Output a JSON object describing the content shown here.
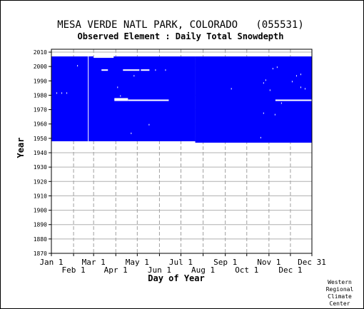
{
  "chart_data": {
    "type": "heatmap",
    "title": "MESA VERDE NATL PARK, COLORADO   (055531)",
    "subtitle": "Observed Element : Daily Total Snowdepth",
    "xlabel": "Day of Year",
    "ylabel": "Year",
    "ylim": [
      1870,
      2012
    ],
    "y_ticks": [
      1870,
      1880,
      1890,
      1900,
      1910,
      1920,
      1930,
      1940,
      1950,
      1960,
      1970,
      1980,
      1990,
      2000,
      2010
    ],
    "x_ticks_top": [
      {
        "label": "Jan 1",
        "day": 1
      },
      {
        "label": "Mar 1",
        "day": 60
      },
      {
        "label": "May 1",
        "day": 121
      },
      {
        "label": "Jul 1",
        "day": 182
      },
      {
        "label": "Sep 1",
        "day": 244
      },
      {
        "label": "Nov 1",
        "day": 305
      },
      {
        "label": "Dec 31",
        "day": 365
      }
    ],
    "x_ticks_bottom": [
      {
        "label": "Feb 1",
        "day": 32
      },
      {
        "label": "Apr 1",
        "day": 91
      },
      {
        "label": "Jun 1",
        "day": 152
      },
      {
        "label": "Aug 1",
        "day": 213
      },
      {
        "label": "Oct 1",
        "day": 274
      },
      {
        "label": "Dec 1",
        "day": 335
      }
    ],
    "grid": true,
    "data_color": "#0000ff",
    "record": {
      "blocks": [
        {
          "day_start": 1,
          "day_end": 202,
          "year_start": 1948,
          "year_end": 2006
        },
        {
          "day_start": 202,
          "day_end": 365,
          "year_start": 1947,
          "year_end": 2006
        }
      ],
      "extra_2006": [
        {
          "day_start": 56,
          "day_end": 88
        }
      ],
      "gaps": [
        {
          "day_start": 89,
          "day_end": 108,
          "year_start": 1976,
          "year_end": 1977
        },
        {
          "day_start": 108,
          "day_end": 165,
          "year_start": 1976,
          "year_end": 1976
        },
        {
          "day_start": 314,
          "day_end": 365,
          "year_start": 1976,
          "year_end": 1976
        },
        {
          "day_start": 52,
          "day_end": 53,
          "year_start": 1948,
          "year_end": 2006
        },
        {
          "day_start": 60,
          "day_end": 88,
          "year_start": 2006,
          "year_end": 2006
        },
        {
          "day_start": 71,
          "day_end": 80,
          "year_start": 1997,
          "year_end": 1997
        },
        {
          "day_start": 101,
          "day_end": 124,
          "year_start": 1997,
          "year_end": 1997
        },
        {
          "day_start": 126,
          "day_end": 138,
          "year_start": 1997,
          "year_end": 1997
        },
        {
          "day_start": 8,
          "day_end": 9,
          "year_start": 1981,
          "year_end": 1981
        },
        {
          "day_start": 15,
          "day_end": 16,
          "year_start": 1981,
          "year_end": 1981
        },
        {
          "day_start": 22,
          "day_end": 23,
          "year_start": 1981,
          "year_end": 1981
        },
        {
          "day_start": 37,
          "day_end": 38,
          "year_start": 2000,
          "year_end": 2000
        },
        {
          "day_start": 146,
          "day_end": 147,
          "year_start": 1997,
          "year_end": 1997
        },
        {
          "day_start": 160,
          "day_end": 161,
          "year_start": 1997,
          "year_end": 1997
        },
        {
          "day_start": 93,
          "day_end": 94,
          "year_start": 1985,
          "year_end": 1985
        },
        {
          "day_start": 97,
          "day_end": 98,
          "year_start": 1979,
          "year_end": 1979
        },
        {
          "day_start": 116,
          "day_end": 117,
          "year_start": 1993,
          "year_end": 1993
        },
        {
          "day_start": 112,
          "day_end": 113,
          "year_start": 1953,
          "year_end": 1953
        },
        {
          "day_start": 137,
          "day_end": 138,
          "year_start": 1959,
          "year_end": 1959
        },
        {
          "day_start": 252,
          "day_end": 253,
          "year_start": 1984,
          "year_end": 1984
        },
        {
          "day_start": 293,
          "day_end": 294,
          "year_start": 1950,
          "year_end": 1950
        },
        {
          "day_start": 297,
          "day_end": 298,
          "year_start": 1988,
          "year_end": 1988
        },
        {
          "day_start": 300,
          "day_end": 301,
          "year_start": 1990,
          "year_end": 1990
        },
        {
          "day_start": 306,
          "day_end": 307,
          "year_start": 1983,
          "year_end": 1983
        },
        {
          "day_start": 310,
          "day_end": 311,
          "year_start": 1998,
          "year_end": 1998
        },
        {
          "day_start": 316,
          "day_end": 317,
          "year_start": 1999,
          "year_end": 1999
        },
        {
          "day_start": 322,
          "day_end": 323,
          "year_start": 1974,
          "year_end": 1974
        },
        {
          "day_start": 337,
          "day_end": 338,
          "year_start": 1989,
          "year_end": 1989
        },
        {
          "day_start": 343,
          "day_end": 344,
          "year_start": 1993,
          "year_end": 1993
        },
        {
          "day_start": 349,
          "day_end": 350,
          "year_start": 1994,
          "year_end": 1994
        },
        {
          "day_start": 349,
          "day_end": 350,
          "year_start": 1985,
          "year_end": 1985
        },
        {
          "day_start": 313,
          "day_end": 314,
          "year_start": 1966,
          "year_end": 1966
        },
        {
          "day_start": 297,
          "day_end": 298,
          "year_start": 1967,
          "year_end": 1967
        },
        {
          "day_start": 355,
          "day_end": 356,
          "year_start": 1984,
          "year_end": 1984
        }
      ]
    }
  },
  "credit": [
    "Western",
    "Regional",
    "Climate",
    "Center"
  ]
}
